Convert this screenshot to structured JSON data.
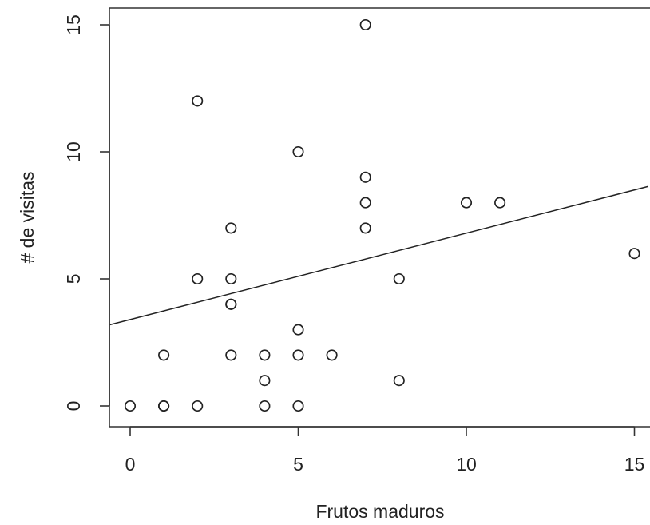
{
  "chart_data": {
    "type": "scatter",
    "xlabel": "Frutos maduros",
    "ylabel": "# de visitas",
    "x_ticks": [
      0,
      5,
      10,
      15
    ],
    "y_ticks": [
      0,
      5,
      10,
      15
    ],
    "x_tick_labels": [
      "0",
      "5",
      "10",
      "15"
    ],
    "y_tick_labels": [
      "0",
      "5",
      "10",
      "15"
    ],
    "xlim": [
      -0.6,
      15.4
    ],
    "ylim": [
      -0.9,
      15.6
    ],
    "grid": false,
    "points": [
      {
        "x": 0,
        "y": 0
      },
      {
        "x": 1,
        "y": 0
      },
      {
        "x": 1,
        "y": 0
      },
      {
        "x": 1,
        "y": 2
      },
      {
        "x": 2,
        "y": 0
      },
      {
        "x": 2,
        "y": 5
      },
      {
        "x": 2,
        "y": 12
      },
      {
        "x": 3,
        "y": 2
      },
      {
        "x": 3,
        "y": 4
      },
      {
        "x": 3,
        "y": 4
      },
      {
        "x": 3,
        "y": 5
      },
      {
        "x": 3,
        "y": 7
      },
      {
        "x": 4,
        "y": 0
      },
      {
        "x": 4,
        "y": 1
      },
      {
        "x": 4,
        "y": 2
      },
      {
        "x": 5,
        "y": 0
      },
      {
        "x": 5,
        "y": 2
      },
      {
        "x": 5,
        "y": 3
      },
      {
        "x": 5,
        "y": 10
      },
      {
        "x": 6,
        "y": 2
      },
      {
        "x": 7,
        "y": 7
      },
      {
        "x": 7,
        "y": 8
      },
      {
        "x": 7,
        "y": 9
      },
      {
        "x": 7,
        "y": 15
      },
      {
        "x": 8,
        "y": 1
      },
      {
        "x": 8,
        "y": 5
      },
      {
        "x": 10,
        "y": 8
      },
      {
        "x": 11,
        "y": 8
      },
      {
        "x": 15,
        "y": 6
      }
    ],
    "regression_line": {
      "intercept": 3.4,
      "slope": 0.34
    }
  }
}
